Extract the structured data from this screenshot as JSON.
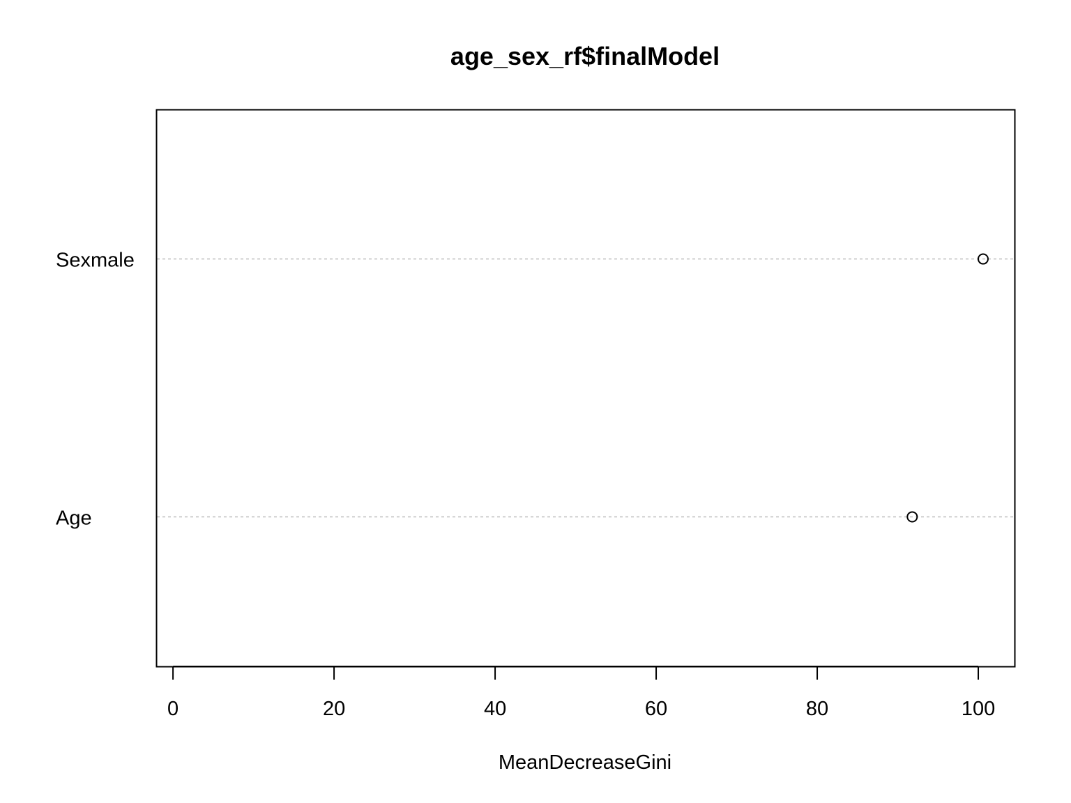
{
  "chart_data": {
    "type": "scatter",
    "title": "age_sex_rf$finalModel",
    "xlabel": "MeanDecreaseGini",
    "ylabel": "",
    "xlim": [
      -2,
      104.5
    ],
    "x_ticks": [
      0,
      20,
      40,
      60,
      80,
      100
    ],
    "x_tick_labels": [
      "0",
      "20",
      "40",
      "60",
      "80",
      "100"
    ],
    "categories": [
      "Age",
      "Sexmale"
    ],
    "values": [
      91.8,
      100.6
    ],
    "grid": "dotted horizontal lines at each category",
    "legend": "none",
    "colors": {
      "point": "#000000",
      "gridline": "#bebebe",
      "frame": "#000000"
    }
  }
}
